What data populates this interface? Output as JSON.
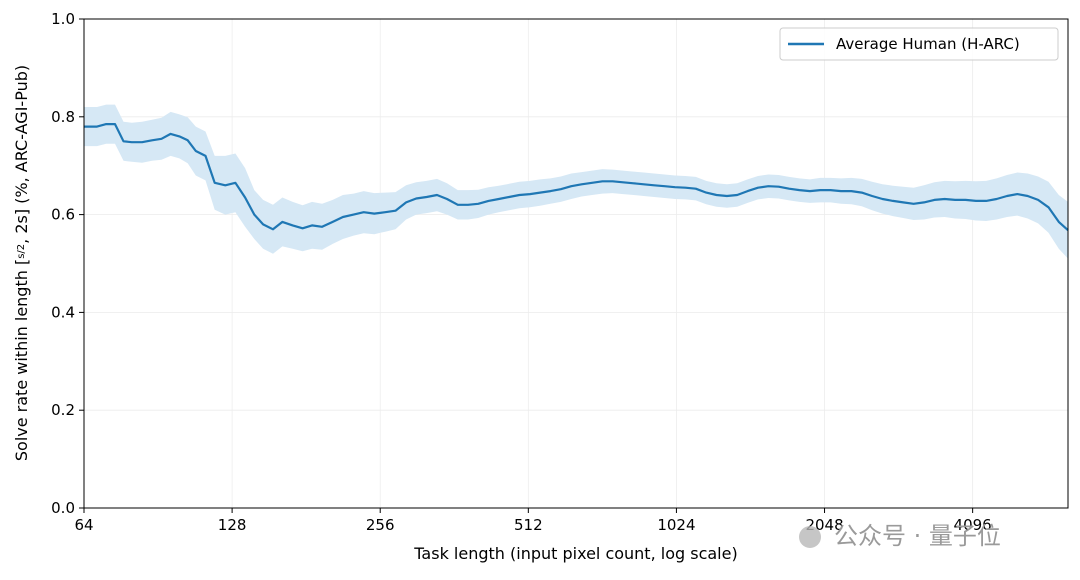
{
  "chart_data": {
    "type": "line",
    "xlabel": "Task length (input pixel count, log scale)",
    "ylabel": "Solve rate within length [s/2, 2s] (%, ARC-AGI-Pub)",
    "xscale": "log2",
    "xlim": [
      64,
      6400
    ],
    "ylim": [
      0,
      1.0
    ],
    "x_ticks": [
      64,
      128,
      256,
      512,
      1024,
      2048,
      4096
    ],
    "x_tick_labels": [
      "64",
      "128",
      "256",
      "512",
      "1024",
      "2048",
      "4096"
    ],
    "y_ticks": [
      0.0,
      0.2,
      0.4,
      0.6,
      0.8,
      1.0
    ],
    "y_tick_labels": [
      "0.0",
      "0.2",
      "0.4",
      "0.6",
      "0.8",
      "1.0"
    ],
    "grid": true,
    "legend_position": "top-right",
    "series": [
      {
        "name": "Average Human (H-ARC)",
        "color": "#1f77b4",
        "band_color": "#d6e8f5",
        "x": [
          64,
          68,
          71,
          74,
          77,
          80,
          84,
          88,
          92,
          96,
          100,
          104,
          108,
          113,
          118,
          124,
          130,
          136,
          142,
          148,
          155,
          162,
          170,
          178,
          186,
          195,
          205,
          215,
          226,
          237,
          249,
          262,
          275,
          289,
          303,
          318,
          334,
          350,
          368,
          386,
          405,
          425,
          446,
          468,
          491,
          516,
          541,
          568,
          596,
          626,
          657,
          690,
          724,
          760,
          798,
          838,
          879,
          923,
          969,
          1017,
          1068,
          1121,
          1177,
          1235,
          1297,
          1361,
          1429,
          1500,
          1575,
          1653,
          1735,
          1822,
          1912,
          2007,
          2107,
          2212,
          2322,
          2438,
          2559,
          2686,
          2820,
          2960,
          3107,
          3262,
          3424,
          3594,
          3773,
          3961,
          4158,
          4365,
          4582,
          4810,
          5049,
          5300,
          5564,
          5841,
          6131,
          6400
        ],
        "y": [
          0.78,
          0.78,
          0.785,
          0.785,
          0.75,
          0.748,
          0.748,
          0.752,
          0.755,
          0.765,
          0.76,
          0.752,
          0.73,
          0.72,
          0.665,
          0.66,
          0.665,
          0.635,
          0.6,
          0.58,
          0.57,
          0.585,
          0.578,
          0.572,
          0.578,
          0.575,
          0.585,
          0.595,
          0.6,
          0.605,
          0.602,
          0.605,
          0.608,
          0.625,
          0.633,
          0.636,
          0.64,
          0.632,
          0.62,
          0.62,
          0.622,
          0.628,
          0.632,
          0.636,
          0.64,
          0.642,
          0.645,
          0.648,
          0.652,
          0.658,
          0.662,
          0.665,
          0.668,
          0.668,
          0.666,
          0.664,
          0.662,
          0.66,
          0.658,
          0.656,
          0.655,
          0.653,
          0.645,
          0.64,
          0.638,
          0.64,
          0.648,
          0.655,
          0.658,
          0.657,
          0.653,
          0.65,
          0.648,
          0.65,
          0.65,
          0.648,
          0.648,
          0.645,
          0.638,
          0.632,
          0.628,
          0.625,
          0.622,
          0.625,
          0.63,
          0.632,
          0.63,
          0.63,
          0.628,
          0.628,
          0.632,
          0.638,
          0.642,
          0.638,
          0.63,
          0.615,
          0.585,
          0.568
        ],
        "lower": [
          0.74,
          0.74,
          0.745,
          0.745,
          0.71,
          0.708,
          0.706,
          0.71,
          0.712,
          0.72,
          0.715,
          0.705,
          0.68,
          0.67,
          0.61,
          0.6,
          0.605,
          0.575,
          0.55,
          0.53,
          0.52,
          0.535,
          0.53,
          0.525,
          0.53,
          0.528,
          0.54,
          0.55,
          0.557,
          0.562,
          0.56,
          0.565,
          0.57,
          0.59,
          0.6,
          0.603,
          0.607,
          0.6,
          0.59,
          0.59,
          0.593,
          0.6,
          0.605,
          0.609,
          0.613,
          0.615,
          0.618,
          0.622,
          0.626,
          0.632,
          0.637,
          0.64,
          0.643,
          0.644,
          0.642,
          0.64,
          0.638,
          0.636,
          0.634,
          0.632,
          0.631,
          0.629,
          0.621,
          0.616,
          0.614,
          0.616,
          0.624,
          0.631,
          0.634,
          0.633,
          0.629,
          0.626,
          0.624,
          0.625,
          0.625,
          0.622,
          0.621,
          0.617,
          0.609,
          0.602,
          0.597,
          0.593,
          0.589,
          0.59,
          0.594,
          0.595,
          0.592,
          0.591,
          0.588,
          0.587,
          0.59,
          0.595,
          0.598,
          0.592,
          0.582,
          0.563,
          0.53,
          0.51
        ],
        "upper": [
          0.82,
          0.82,
          0.825,
          0.825,
          0.79,
          0.788,
          0.79,
          0.794,
          0.798,
          0.81,
          0.805,
          0.799,
          0.78,
          0.77,
          0.72,
          0.72,
          0.725,
          0.695,
          0.65,
          0.63,
          0.62,
          0.635,
          0.626,
          0.619,
          0.626,
          0.622,
          0.63,
          0.64,
          0.643,
          0.648,
          0.644,
          0.645,
          0.646,
          0.66,
          0.666,
          0.669,
          0.673,
          0.664,
          0.65,
          0.65,
          0.651,
          0.656,
          0.659,
          0.663,
          0.667,
          0.669,
          0.672,
          0.674,
          0.678,
          0.684,
          0.687,
          0.69,
          0.693,
          0.692,
          0.69,
          0.688,
          0.686,
          0.684,
          0.682,
          0.68,
          0.679,
          0.677,
          0.669,
          0.664,
          0.662,
          0.664,
          0.672,
          0.679,
          0.682,
          0.681,
          0.677,
          0.674,
          0.672,
          0.675,
          0.675,
          0.674,
          0.675,
          0.673,
          0.667,
          0.662,
          0.659,
          0.657,
          0.655,
          0.66,
          0.666,
          0.669,
          0.668,
          0.669,
          0.668,
          0.669,
          0.674,
          0.681,
          0.686,
          0.684,
          0.678,
          0.667,
          0.64,
          0.626
        ]
      }
    ]
  },
  "watermark": {
    "text": "公众号 · 量子位"
  }
}
